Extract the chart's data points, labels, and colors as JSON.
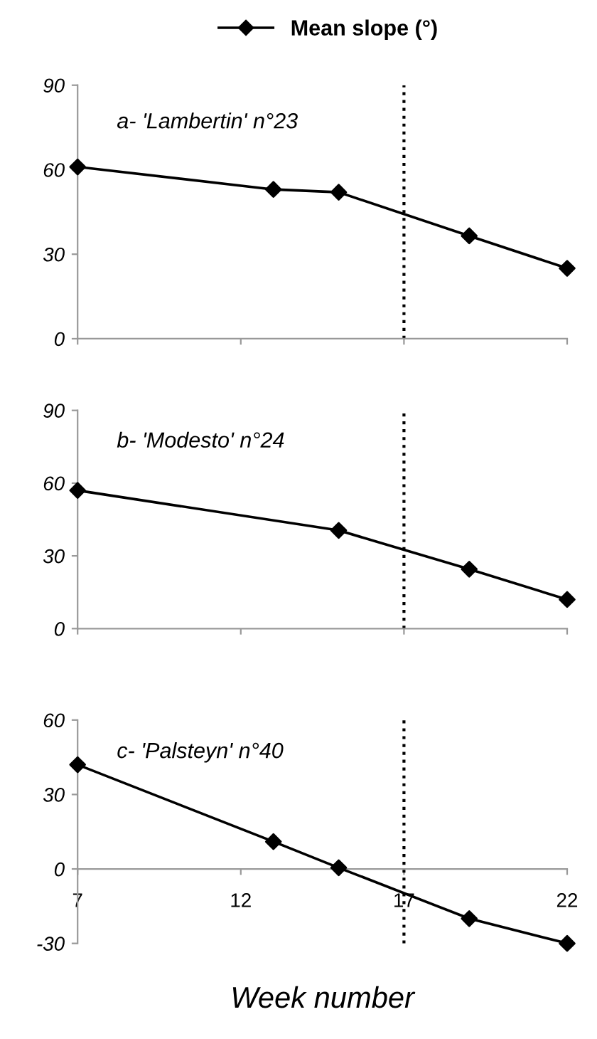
{
  "chart_data": [
    {
      "type": "line",
      "x": [
        7,
        13,
        15,
        19,
        22
      ],
      "series": [
        {
          "name": "Mean slope (°)",
          "color": "#000000",
          "values": [
            61,
            53,
            52,
            36.5,
            25
          ]
        }
      ],
      "annotations": [
        "a- 'Lambertin' n°23"
      ],
      "xlim": [
        7,
        22
      ],
      "xticks": [
        7,
        12,
        17,
        22
      ],
      "ylim": [
        0,
        90
      ],
      "yticks": [
        0,
        30,
        60,
        90
      ],
      "tick_labels": "y",
      "grid": false,
      "legend": "top",
      "marker": "diamond",
      "line_style": "solid",
      "ref_lines": [
        {
          "axis": "x",
          "value": 17,
          "color": "#000000",
          "line_style": "dotted"
        }
      ]
    },
    {
      "type": "line",
      "x": [
        7,
        15,
        19,
        22
      ],
      "series": [
        {
          "color": "#000000",
          "values": [
            57,
            40.5,
            24.5,
            12
          ]
        }
      ],
      "annotations": [
        "b- 'Modesto' n°24"
      ],
      "xlim": [
        7,
        22
      ],
      "xticks": [
        7,
        12,
        17,
        22
      ],
      "ylim": [
        0,
        90
      ],
      "yticks": [
        0,
        30,
        60,
        90
      ],
      "tick_labels": "y",
      "grid": false,
      "marker": "diamond",
      "line_style": "solid",
      "ref_lines": [
        {
          "axis": "x",
          "value": 17,
          "color": "#000000",
          "line_style": "dotted"
        }
      ]
    },
    {
      "type": "line",
      "x": [
        7,
        13,
        15,
        19,
        22
      ],
      "series": [
        {
          "color": "#000000",
          "values": [
            42,
            11,
            0.5,
            -20,
            -30
          ]
        }
      ],
      "annotations": [
        "c- 'Palsteyn' n°40"
      ],
      "xlabel": "Week number",
      "xlim": [
        7,
        22
      ],
      "xticks": [
        7,
        12,
        17,
        22
      ],
      "ylim": [
        -30,
        60
      ],
      "yticks": [
        -30,
        0,
        30,
        60
      ],
      "grid": false,
      "marker": "diamond",
      "line_style": "solid",
      "ref_lines": [
        {
          "axis": "x",
          "value": 17,
          "color": "#000000",
          "line_style": "dotted"
        }
      ]
    }
  ]
}
